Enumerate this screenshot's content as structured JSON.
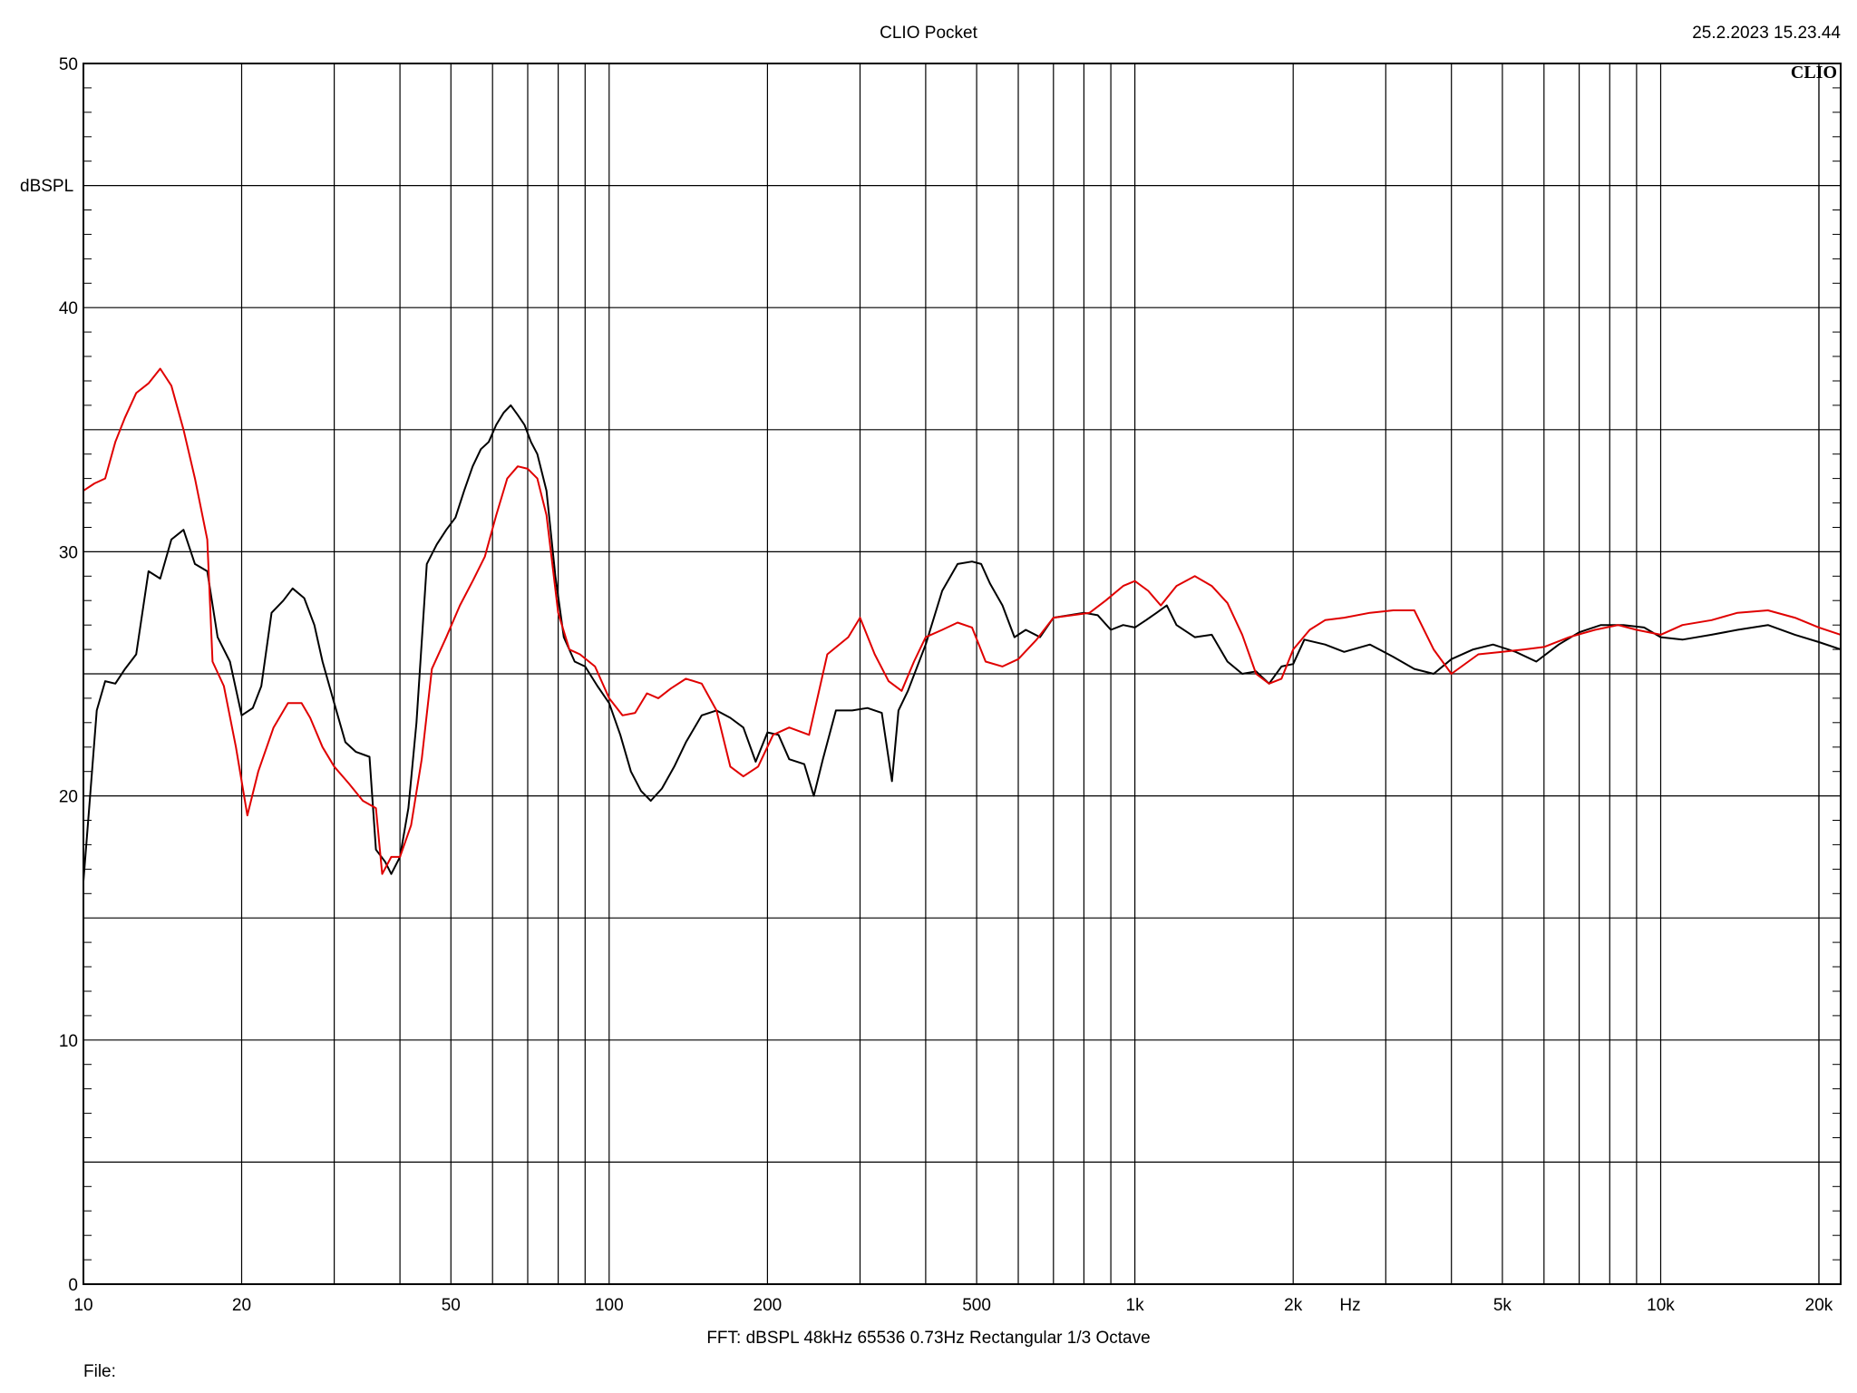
{
  "header": {
    "title": "CLIO Pocket",
    "timestamp": "25.2.2023 15.23.44",
    "logo": "CLIO"
  },
  "footer": {
    "settings": "FFT:  dBSPL  48kHz   65536  0.73Hz  Rectangular  1/3 Octave",
    "file_label": "File:"
  },
  "colors": {
    "series_black": "#000000",
    "series_red": "#e00000",
    "grid": "#000000"
  },
  "chart_data": {
    "type": "line",
    "title": "CLIO Pocket",
    "xlabel": "Hz",
    "ylabel": "dBSPL",
    "x_scale": "log",
    "xlim": [
      10,
      22000
    ],
    "ylim": [
      0,
      50
    ],
    "grid": true,
    "x_ticks": [
      {
        "value": 10,
        "label": "10"
      },
      {
        "value": 20,
        "label": "20"
      },
      {
        "value": 50,
        "label": "50"
      },
      {
        "value": 100,
        "label": "100"
      },
      {
        "value": 200,
        "label": "200"
      },
      {
        "value": 500,
        "label": "500"
      },
      {
        "value": 1000,
        "label": "1k"
      },
      {
        "value": 2000,
        "label": "2k"
      },
      {
        "value": 5000,
        "label": "5k"
      },
      {
        "value": 10000,
        "label": "10k"
      },
      {
        "value": 20000,
        "label": "20k"
      }
    ],
    "y_ticks": [
      {
        "value": 0,
        "label": "0"
      },
      {
        "value": 10,
        "label": "10"
      },
      {
        "value": 20,
        "label": "20"
      },
      {
        "value": 30,
        "label": "30"
      },
      {
        "value": 40,
        "label": "40"
      },
      {
        "value": 50,
        "label": "50"
      }
    ],
    "series": [
      {
        "color": "#000000",
        "points": [
          [
            10,
            16.5
          ],
          [
            10.3,
            20
          ],
          [
            10.6,
            23.5
          ],
          [
            11,
            24.7
          ],
          [
            11.5,
            24.6
          ],
          [
            12,
            25.2
          ],
          [
            12.6,
            25.8
          ],
          [
            13.3,
            29.2
          ],
          [
            14,
            28.9
          ],
          [
            14.7,
            30.5
          ],
          [
            15.5,
            30.9
          ],
          [
            16.3,
            29.5
          ],
          [
            17.2,
            29.2
          ],
          [
            18,
            26.5
          ],
          [
            19,
            25.5
          ],
          [
            20,
            23.3
          ],
          [
            21,
            23.6
          ],
          [
            21.8,
            24.5
          ],
          [
            22.8,
            27.5
          ],
          [
            24,
            28
          ],
          [
            25,
            28.5
          ],
          [
            26.3,
            28.1
          ],
          [
            27.5,
            27
          ],
          [
            28.5,
            25.5
          ],
          [
            30,
            23.8
          ],
          [
            31.5,
            22.2
          ],
          [
            33,
            21.8
          ],
          [
            35,
            21.6
          ],
          [
            36,
            17.8
          ],
          [
            37.5,
            17.3
          ],
          [
            38.5,
            16.8
          ],
          [
            40,
            17.5
          ],
          [
            41.5,
            19.5
          ],
          [
            43,
            23
          ],
          [
            45,
            29.5
          ],
          [
            47,
            30.3
          ],
          [
            49,
            30.9
          ],
          [
            51,
            31.4
          ],
          [
            53,
            32.5
          ],
          [
            55,
            33.5
          ],
          [
            57,
            34.2
          ],
          [
            59,
            34.5
          ],
          [
            61,
            35.2
          ],
          [
            63,
            35.7
          ],
          [
            65,
            36
          ],
          [
            67,
            35.6
          ],
          [
            69,
            35.2
          ],
          [
            71,
            34.5
          ],
          [
            73,
            34
          ],
          [
            76,
            32.5
          ],
          [
            79,
            29
          ],
          [
            82,
            26.5
          ],
          [
            86,
            25.5
          ],
          [
            90,
            25.3
          ],
          [
            95,
            24.5
          ],
          [
            100,
            23.8
          ],
          [
            105,
            22.5
          ],
          [
            110,
            21
          ],
          [
            115,
            20.2
          ],
          [
            120,
            19.8
          ],
          [
            126,
            20.3
          ],
          [
            133,
            21.2
          ],
          [
            140,
            22.2
          ],
          [
            150,
            23.3
          ],
          [
            160,
            23.5
          ],
          [
            170,
            23.2
          ],
          [
            180,
            22.8
          ],
          [
            190,
            21.4
          ],
          [
            200,
            22.6
          ],
          [
            210,
            22.5
          ],
          [
            220,
            21.5
          ],
          [
            235,
            21.3
          ],
          [
            245,
            20
          ],
          [
            255,
            21.5
          ],
          [
            270,
            23.5
          ],
          [
            290,
            23.5
          ],
          [
            310,
            23.6
          ],
          [
            330,
            23.4
          ],
          [
            345,
            20.6
          ],
          [
            355,
            23.5
          ],
          [
            370,
            24.3
          ],
          [
            400,
            26.2
          ],
          [
            430,
            28.4
          ],
          [
            460,
            29.5
          ],
          [
            490,
            29.6
          ],
          [
            510,
            29.5
          ],
          [
            530,
            28.7
          ],
          [
            560,
            27.8
          ],
          [
            590,
            26.5
          ],
          [
            620,
            26.8
          ],
          [
            660,
            26.5
          ],
          [
            700,
            27.3
          ],
          [
            750,
            27.4
          ],
          [
            800,
            27.5
          ],
          [
            850,
            27.4
          ],
          [
            900,
            26.8
          ],
          [
            950,
            27
          ],
          [
            1000,
            26.9
          ],
          [
            1050,
            27.2
          ],
          [
            1100,
            27.5
          ],
          [
            1150,
            27.8
          ],
          [
            1200,
            27
          ],
          [
            1300,
            26.5
          ],
          [
            1400,
            26.6
          ],
          [
            1500,
            25.5
          ],
          [
            1600,
            25
          ],
          [
            1700,
            25.1
          ],
          [
            1800,
            24.6
          ],
          [
            1900,
            25.3
          ],
          [
            2000,
            25.4
          ],
          [
            2100,
            26.4
          ],
          [
            2300,
            26.2
          ],
          [
            2500,
            25.9
          ],
          [
            2800,
            26.2
          ],
          [
            3100,
            25.7
          ],
          [
            3400,
            25.2
          ],
          [
            3700,
            25
          ],
          [
            4000,
            25.6
          ],
          [
            4400,
            26
          ],
          [
            4800,
            26.2
          ],
          [
            5300,
            25.9
          ],
          [
            5800,
            25.5
          ],
          [
            6400,
            26.2
          ],
          [
            7000,
            26.7
          ],
          [
            7700,
            27
          ],
          [
            8500,
            27
          ],
          [
            9300,
            26.9
          ],
          [
            10000,
            26.5
          ],
          [
            11000,
            26.4
          ],
          [
            12500,
            26.6
          ],
          [
            14000,
            26.8
          ],
          [
            16000,
            27
          ],
          [
            18000,
            26.6
          ],
          [
            20000,
            26.3
          ],
          [
            22000,
            26
          ]
        ]
      },
      {
        "color": "#e00000",
        "points": [
          [
            10,
            32.5
          ],
          [
            10.5,
            32.8
          ],
          [
            11,
            33
          ],
          [
            11.5,
            34.5
          ],
          [
            12,
            35.5
          ],
          [
            12.6,
            36.5
          ],
          [
            13.3,
            36.9
          ],
          [
            14,
            37.5
          ],
          [
            14.7,
            36.8
          ],
          [
            15.5,
            35
          ],
          [
            16.3,
            33
          ],
          [
            17.2,
            30.5
          ],
          [
            17.6,
            25.5
          ],
          [
            18.5,
            24.5
          ],
          [
            19.5,
            22
          ],
          [
            20.5,
            19.2
          ],
          [
            21.5,
            21
          ],
          [
            23,
            22.8
          ],
          [
            24.5,
            23.8
          ],
          [
            26,
            23.8
          ],
          [
            27,
            23.2
          ],
          [
            28.5,
            22
          ],
          [
            30,
            21.2
          ],
          [
            32,
            20.5
          ],
          [
            34,
            19.8
          ],
          [
            36,
            19.5
          ],
          [
            37,
            16.8
          ],
          [
            38.5,
            17.5
          ],
          [
            40,
            17.5
          ],
          [
            42,
            18.8
          ],
          [
            44,
            21.5
          ],
          [
            46,
            25.2
          ],
          [
            49,
            26.5
          ],
          [
            52,
            27.8
          ],
          [
            55,
            28.8
          ],
          [
            58,
            29.8
          ],
          [
            61,
            31.5
          ],
          [
            64,
            33
          ],
          [
            67,
            33.5
          ],
          [
            70,
            33.4
          ],
          [
            73,
            33
          ],
          [
            76,
            31.5
          ],
          [
            80,
            27.5
          ],
          [
            84,
            26
          ],
          [
            88,
            25.8
          ],
          [
            94,
            25.3
          ],
          [
            100,
            24
          ],
          [
            106,
            23.3
          ],
          [
            112,
            23.4
          ],
          [
            118,
            24.2
          ],
          [
            124,
            24
          ],
          [
            131,
            24.4
          ],
          [
            140,
            24.8
          ],
          [
            150,
            24.6
          ],
          [
            160,
            23.5
          ],
          [
            170,
            21.2
          ],
          [
            180,
            20.8
          ],
          [
            192,
            21.2
          ],
          [
            205,
            22.5
          ],
          [
            220,
            22.8
          ],
          [
            240,
            22.5
          ],
          [
            260,
            25.8
          ],
          [
            285,
            26.5
          ],
          [
            300,
            27.3
          ],
          [
            320,
            25.8
          ],
          [
            340,
            24.7
          ],
          [
            360,
            24.3
          ],
          [
            380,
            25.5
          ],
          [
            400,
            26.5
          ],
          [
            430,
            26.8
          ],
          [
            460,
            27.1
          ],
          [
            490,
            26.9
          ],
          [
            520,
            25.5
          ],
          [
            560,
            25.3
          ],
          [
            600,
            25.6
          ],
          [
            650,
            26.4
          ],
          [
            700,
            27.3
          ],
          [
            760,
            27.4
          ],
          [
            820,
            27.5
          ],
          [
            880,
            28
          ],
          [
            950,
            28.6
          ],
          [
            1000,
            28.8
          ],
          [
            1060,
            28.4
          ],
          [
            1120,
            27.8
          ],
          [
            1200,
            28.6
          ],
          [
            1300,
            29
          ],
          [
            1400,
            28.6
          ],
          [
            1500,
            27.9
          ],
          [
            1600,
            26.6
          ],
          [
            1700,
            25
          ],
          [
            1800,
            24.6
          ],
          [
            1900,
            24.8
          ],
          [
            2000,
            26
          ],
          [
            2150,
            26.8
          ],
          [
            2300,
            27.2
          ],
          [
            2500,
            27.3
          ],
          [
            2800,
            27.5
          ],
          [
            3100,
            27.6
          ],
          [
            3400,
            27.6
          ],
          [
            3700,
            26
          ],
          [
            4000,
            25
          ],
          [
            4500,
            25.8
          ],
          [
            5000,
            25.9
          ],
          [
            5500,
            26
          ],
          [
            6000,
            26.1
          ],
          [
            6700,
            26.5
          ],
          [
            7500,
            26.8
          ],
          [
            8300,
            27
          ],
          [
            9000,
            26.8
          ],
          [
            10000,
            26.6
          ],
          [
            11000,
            27
          ],
          [
            12500,
            27.2
          ],
          [
            14000,
            27.5
          ],
          [
            16000,
            27.6
          ],
          [
            18000,
            27.3
          ],
          [
            20000,
            26.9
          ],
          [
            22000,
            26.6
          ]
        ]
      }
    ]
  }
}
